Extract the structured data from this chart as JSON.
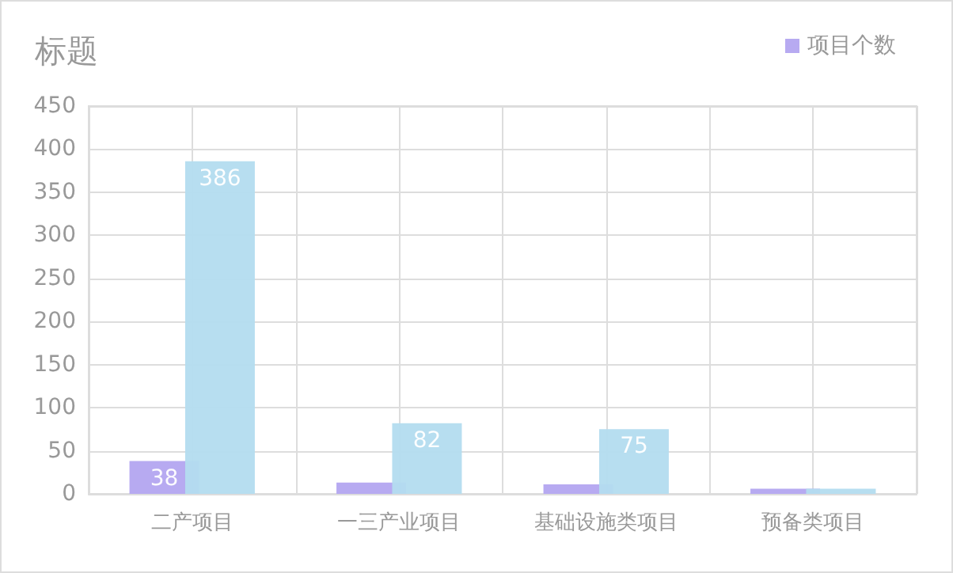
{
  "chart_data": {
    "type": "bar",
    "title": "标题",
    "categories": [
      "二产项目",
      "一三产业项目",
      "基础设施类项目",
      "预备类项目"
    ],
    "series": [
      {
        "name": "项目个数",
        "color": "#b3a5f0",
        "values": [
          38,
          13,
          11,
          6
        ],
        "value_labels": [
          "38",
          null,
          null,
          null
        ]
      },
      {
        "color": "#b3dcef",
        "values": [
          386,
          82,
          75,
          6
        ],
        "value_labels": [
          "386",
          "82",
          "75",
          null
        ]
      }
    ],
    "ylim": [
      0,
      450
    ],
    "yticks": [
      0,
      50,
      100,
      150,
      200,
      250,
      300,
      350,
      400,
      450
    ],
    "grid": true,
    "legend": "top right"
  }
}
